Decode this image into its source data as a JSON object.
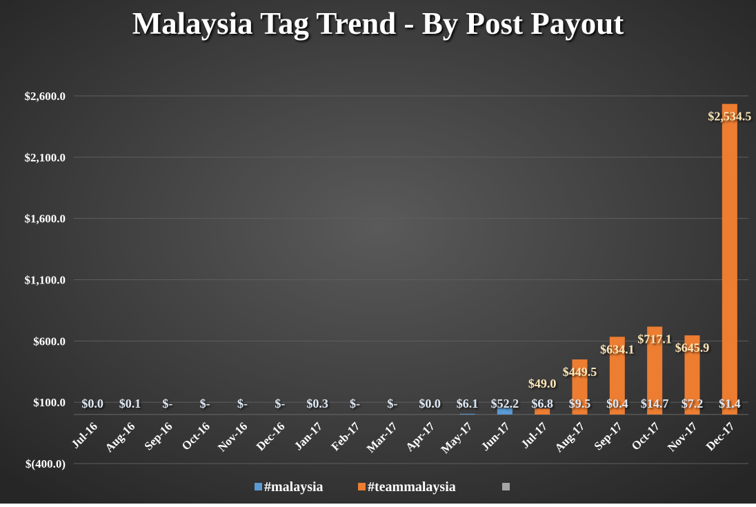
{
  "chart_data": {
    "type": "bar",
    "title": "Malaysia Tag Trend - By Post Payout",
    "categories": [
      "Jul-16",
      "Aug-16",
      "Sep-16",
      "Oct-16",
      "Nov-16",
      "Dec-16",
      "Jan-17",
      "Feb-17",
      "Mar-17",
      "Apr-17",
      "May-17",
      "Jun-17",
      "Jul-17",
      "Aug-17",
      "Sep-17",
      "Oct-17",
      "Nov-17",
      "Dec-17"
    ],
    "series": [
      {
        "name": "#malaysia",
        "color": "#5b9bd5",
        "values": [
          0.0,
          0.1,
          0,
          0,
          0,
          0,
          0.3,
          0,
          0,
          0.0,
          6.1,
          52.2,
          6.8,
          9.5,
          0.4,
          14.7,
          7.2,
          1.4
        ],
        "value_labels": [
          "$0.0",
          "$0.1",
          "$-",
          "$-",
          "$-",
          "$-",
          "$0.3",
          "$-",
          "$-",
          "$0.0",
          "$6.1",
          "$52.2",
          "$6.8",
          "$9.5",
          "$0.4",
          "$14.7",
          "$7.2",
          "$1.4"
        ]
      },
      {
        "name": "#teammalaysia",
        "color": "#ed7d31",
        "values": [
          null,
          null,
          null,
          null,
          null,
          null,
          null,
          null,
          null,
          null,
          null,
          null,
          49.0,
          449.5,
          634.1,
          717.1,
          645.9,
          2534.5
        ],
        "value_labels": [
          null,
          null,
          null,
          null,
          null,
          null,
          null,
          null,
          null,
          null,
          null,
          null,
          "$49.0",
          "$449.5",
          "$634.1",
          "$717.1",
          "$645.9",
          "$2,534.5"
        ]
      }
    ],
    "ylim": [
      -400,
      2600
    ],
    "yticks": [
      {
        "value": -400,
        "label": "$(400.0)"
      },
      {
        "value": 100,
        "label": "$100.0"
      },
      {
        "value": 600,
        "label": "$600.0"
      },
      {
        "value": 1100,
        "label": "$1,100.0"
      },
      {
        "value": 1600,
        "label": "$1,600.0"
      },
      {
        "value": 2100,
        "label": "$2,100.0"
      },
      {
        "value": 2600,
        "label": "$2,600.0"
      }
    ],
    "grid": true
  }
}
